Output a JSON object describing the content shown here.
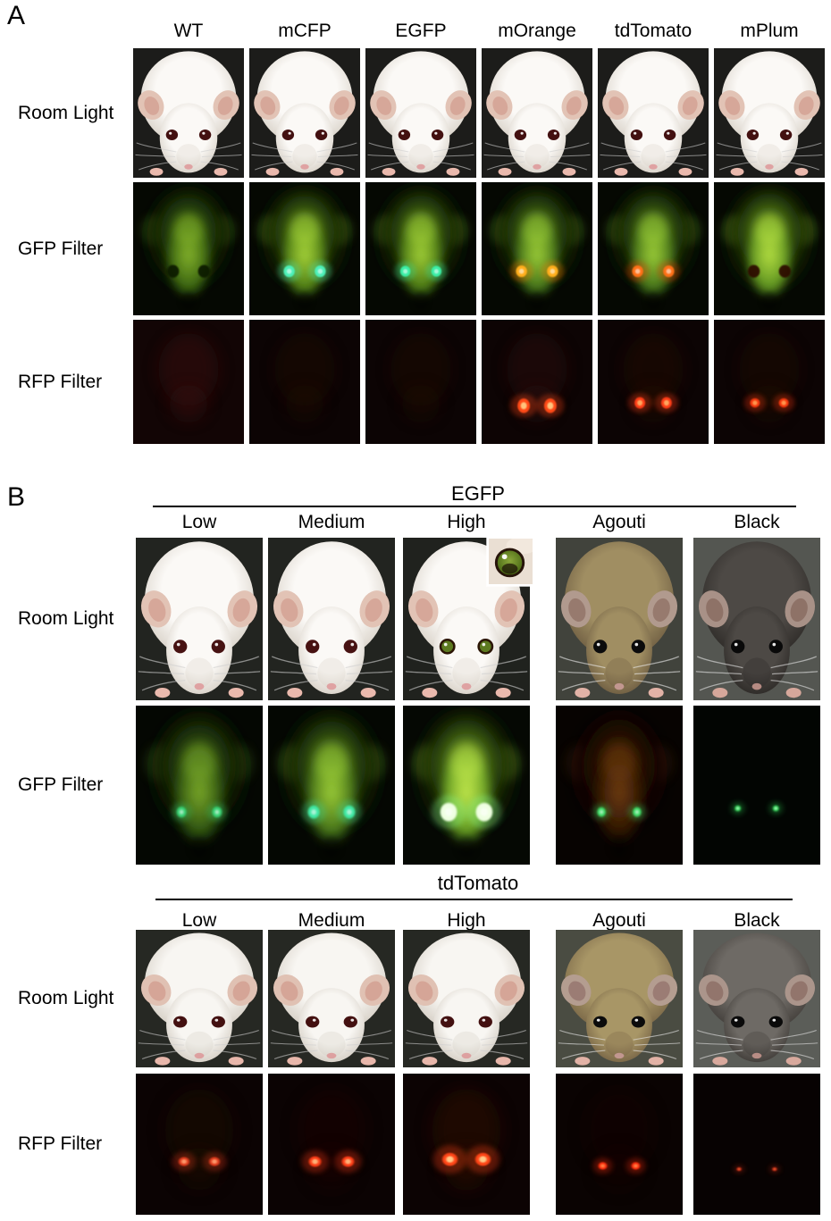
{
  "figure": {
    "colors": {
      "page_bg": "#ffffff",
      "text": "#000000",
      "rule": "#000000"
    },
    "panelA": {
      "label": "A",
      "columns": [
        "WT",
        "mCFP",
        "EGFP",
        "mOrange",
        "tdTomato",
        "mPlum"
      ],
      "rows": [
        {
          "label": "Room Light",
          "cells": [
            "rlA",
            "rlA",
            "rlA",
            "rlA",
            "rlA",
            "rlA"
          ]
        },
        {
          "label": "GFP Filter",
          "cells": [
            "gfpWT",
            "gfpCyan",
            "gfpCyan2",
            "gfpOrange",
            "gfpTd",
            "gfpPlum"
          ]
        },
        {
          "label": "RFP Filter",
          "cells": [
            "rfpWT",
            "rfpFaint",
            "rfpFaint",
            "rfpOrangeEyes",
            "rfpTdEyes",
            "rfpPlumEyes"
          ]
        }
      ]
    },
    "panelB": {
      "label": "B",
      "sections": [
        {
          "title": "EGFP",
          "columns": [
            "Low",
            "Medium",
            "High",
            "Agouti",
            "Black"
          ],
          "rows": [
            {
              "label": "Room Light",
              "cells": [
                "rlB",
                "rlB",
                "rlGreen",
                "rlAgouti",
                "rlBlack"
              ]
            },
            {
              "label": "GFP Filter",
              "cells": [
                "gfpLow",
                "gfpMed",
                "gfpHigh",
                "agoutiGfp",
                "blackGfp"
              ]
            }
          ],
          "inset": {
            "name": "green-eye-closeup",
            "fur": "#eadfd3",
            "iris_inner": "#8aa63a",
            "iris_outer": "#40600f",
            "ring": "#27140a",
            "pupil": "#1a1006",
            "highlight": "#ffffff"
          }
        },
        {
          "title": "tdTomato",
          "columns": [
            "Low",
            "Medium",
            "High",
            "Agouti",
            "Black"
          ],
          "rows": [
            {
              "label": "Room Light",
              "cells": [
                "rlB2",
                "rlB2",
                "rlB2",
                "rlAgouti2",
                "rlBlack2"
              ]
            },
            {
              "label": "RFP Filter",
              "cells": [
                "rfpLow",
                "rfpMed",
                "rfpHigh",
                "rfpAgouti",
                "rfpBlack"
              ]
            }
          ]
        }
      ]
    },
    "looks": {
      "rlA": {
        "type": "mouse",
        "bg": "#1c1c1a",
        "body": [
          "#fbf9f6",
          "#d6cfc5"
        ],
        "ear": "#e2c3b5",
        "earIn": "#d4a294",
        "eye": "#431010",
        "nose": "#dfa2a2",
        "paws": "#eab9ad",
        "whisker": "#d0d0d0"
      },
      "rlB": {
        "type": "mouse",
        "bg": "#222420",
        "body": [
          "#fbf9f6",
          "#d6cfc5"
        ],
        "ear": "#e2c3b5",
        "earIn": "#d4a294",
        "eye": "#471212",
        "nose": "#dfa2a2",
        "paws": "#eab9ad",
        "whisker": "#d0d0d0"
      },
      "rlGreen": {
        "type": "mouse",
        "bg": "#20221e",
        "body": [
          "#fbf9f6",
          "#d6cfc5"
        ],
        "ear": "#e2c3b5",
        "earIn": "#d4a294",
        "eye": "#5d7a20",
        "eyeRing": "#2b1505",
        "nose": "#dfa2a2",
        "paws": "#eab9ad",
        "whisker": "#d0d0d0"
      },
      "rlB2": {
        "type": "mouse",
        "bg": "#262823",
        "body": [
          "#f8f6f2",
          "#d2cbc1"
        ],
        "ear": "#e0c1b3",
        "earIn": "#d2a092",
        "eye": "#431010",
        "nose": "#dda0a0",
        "paws": "#e8b7ab",
        "whisker": "#cecece"
      },
      "rlAgouti": {
        "type": "mouse",
        "bg": "#41433c",
        "body": [
          "#a08e62",
          "#6b5a40"
        ],
        "ear": "#b19a8e",
        "earIn": "#937468",
        "eye": "#0b0b0b",
        "nose": "#c29790",
        "paws": "#e2b2a6",
        "whisker": "#ececec"
      },
      "rlAgouti2": {
        "type": "mouse",
        "bg": "#4a4c42",
        "body": [
          "#a89666",
          "#756244"
        ],
        "ear": "#b49d90",
        "earIn": "#967770",
        "eye": "#0b0b0b",
        "nose": "#c29790",
        "paws": "#e2b2a6",
        "whisker": "#ececec"
      },
      "rlBlack": {
        "type": "mouse",
        "bg": "#545651",
        "body": [
          "#4d4945",
          "#2c2926"
        ],
        "ear": "#a89187",
        "earIn": "#8a6c61",
        "eye": "#090909",
        "nose": "#b68b83",
        "paws": "#d6a79b",
        "whisker": "#e5e5e5"
      },
      "rlBlack2": {
        "type": "mouse",
        "bg": "#5b5d58",
        "body": [
          "#6e6a65",
          "#3e3a36"
        ],
        "ear": "#ab958b",
        "earIn": "#8d7066",
        "eye": "#0a0a0a",
        "nose": "#b88d85",
        "paws": "#d8a99d",
        "whisker": "#e5e5e5"
      },
      "gfpWT": {
        "type": "glow",
        "bg": "#050802",
        "outer": [
          "#4e7a17",
          "#0d1c04"
        ],
        "inner": [
          "#86b52c",
          "#3a6410"
        ],
        "eye": "#0f1a05",
        "eyeStyle": "dark"
      },
      "gfpCyan": {
        "type": "glow",
        "bg": "#050802",
        "outer": [
          "#6b9c20",
          "#122304"
        ],
        "inner": [
          "#a9d63a",
          "#4f7f16"
        ],
        "eye": "#4df0b8",
        "eyeStyle": "glow",
        "eyeR": 5
      },
      "gfpCyan2": {
        "type": "glow",
        "bg": "#050802",
        "outer": [
          "#679821",
          "#112104"
        ],
        "inner": [
          "#a4d238",
          "#4b7a15"
        ],
        "eye": "#3aeea6",
        "eyeStyle": "glow",
        "eyeR": 4.6
      },
      "gfpOrange": {
        "type": "glow",
        "bg": "#050802",
        "outer": [
          "#639323",
          "#102004"
        ],
        "inner": [
          "#9fd038",
          "#47751a"
        ],
        "eye": "#ffae1c",
        "eyeGlowC": "#ff7a00",
        "eyeStyle": "glow",
        "eyeR": 5
      },
      "gfpTd": {
        "type": "glow",
        "bg": "#050802",
        "outer": [
          "#639323",
          "#102004"
        ],
        "inner": [
          "#9fd038",
          "#47751a"
        ],
        "eye": "#ff6f16",
        "eyeGlowC": "#e83800",
        "eyeStyle": "glow",
        "eyeR": 5
      },
      "gfpPlum": {
        "type": "glow",
        "bg": "#050802",
        "outer": [
          "#79ab26",
          "#152805"
        ],
        "inner": [
          "#b8e242",
          "#5d9220"
        ],
        "eye": "#2d0f05",
        "eyeStyle": "dark"
      },
      "gfpLow": {
        "type": "glow",
        "bg": "#040702",
        "outer": [
          "#49711a",
          "#0c1903"
        ],
        "inner": [
          "#7cab2a",
          "#2f5410"
        ],
        "eye": "#38d273",
        "eyeStyle": "glow",
        "eyeR": 3.8
      },
      "gfpMed": {
        "type": "glow",
        "bg": "#040702",
        "outer": [
          "#639323",
          "#102004"
        ],
        "inner": [
          "#9fd038",
          "#47751a"
        ],
        "eye": "#3fe8a4",
        "eyeStyle": "glow",
        "eyeR": 4.6
      },
      "gfpHigh": {
        "type": "glow",
        "bg": "#050803",
        "outer": [
          "#7fb42c",
          "#142604"
        ],
        "inner": [
          "#c6ec4e",
          "#639c22"
        ],
        "eye": "#efffe2",
        "eyeGlowC": "#8aff96",
        "eyeStyle": "glow",
        "eyeR": 6.6
      },
      "agoutiGfp": {
        "type": "glow",
        "bg": "#070301",
        "outer": [
          "#4c2508",
          "#0f0501"
        ],
        "inner": [
          "#6f3c0c",
          "#2f1604"
        ],
        "eye": "#3edc66",
        "eyeStyle": "glow",
        "eyeR": 3.4
      },
      "blackGfp": {
        "type": "dots",
        "bg": "#020502",
        "blobOp": 0,
        "dot": "#2ed053",
        "dotCore": "#b2ffc4",
        "dotR": 2.4,
        "dotDX": 15,
        "dotY": 84
      },
      "rfpWT": {
        "type": "dots",
        "bg": "#120505",
        "blob": "#351009",
        "blobOp": 0.55,
        "dotR": 0
      },
      "rfpFaint": {
        "type": "dots",
        "bg": "#0c0404",
        "blob": "#220a06",
        "blobOp": 0.38,
        "dotR": 0
      },
      "rfpOrangeEyes": {
        "type": "dots",
        "bg": "#0d0404",
        "blob": "#2c0d07",
        "blobOp": 0.5,
        "dot": "#ff4a16",
        "dotCore": "#ffca82",
        "dotR": 5.6,
        "dotRy": 1.35,
        "dotDX": 12,
        "dotY": 90
      },
      "rfpTdEyes": {
        "type": "dots",
        "bg": "#0c0404",
        "blob": "#260b06",
        "blobOp": 0.42,
        "dot": "#ff3c12",
        "dotCore": "#ffab62",
        "dotR": 4.8,
        "dotRy": 1.25,
        "dotDX": 12,
        "dotY": 87
      },
      "rfpPlumEyes": {
        "type": "dots",
        "bg": "#0c0404",
        "blob": "#240a06",
        "blobOp": 0.4,
        "dot": "#f53810",
        "dotCore": "#ff9a50",
        "dotR": 4.4,
        "dotRy": 1.1,
        "dotDX": 13,
        "dotY": 87
      },
      "rfpLow": {
        "type": "dots",
        "bg": "#0b0303",
        "blob": "#1e0705",
        "blobOp": 0.5,
        "dot": "#e03a1e",
        "dotCore": "#ff9d6e",
        "dotR": 4.2,
        "dotDX": 12,
        "dotY": 81
      },
      "rfpMed": {
        "type": "dots",
        "bg": "#0b0303",
        "blob": "#1c0604",
        "blobOp": 0.45,
        "dot": "#ff3c14",
        "dotCore": "#ffb87e",
        "dotR": 4.8,
        "dotDX": 13,
        "dotY": 81
      },
      "rfpHigh": {
        "type": "dots",
        "bg": "#0c0303",
        "blob": "#2a0a06",
        "blobOp": 0.6,
        "dot": "#ff4516",
        "dotCore": "#ffd08e",
        "dotR": 6,
        "dotDX": 13,
        "dotY": 79
      },
      "rfpAgouti": {
        "type": "dots",
        "bg": "#0a0302",
        "blob": "#180503",
        "blobOp": 0.4,
        "dot": "#ff2e10",
        "dotCore": "#ff8446",
        "dotR": 3.4,
        "dotDX": 13,
        "dotY": 85
      },
      "rfpBlack": {
        "type": "dots",
        "bg": "#070202",
        "blobOp": 0,
        "dot": "#c22c12",
        "dotCore": "#f06a36",
        "dotR": 1.8,
        "dotDX": 14,
        "dotY": 88
      }
    }
  }
}
